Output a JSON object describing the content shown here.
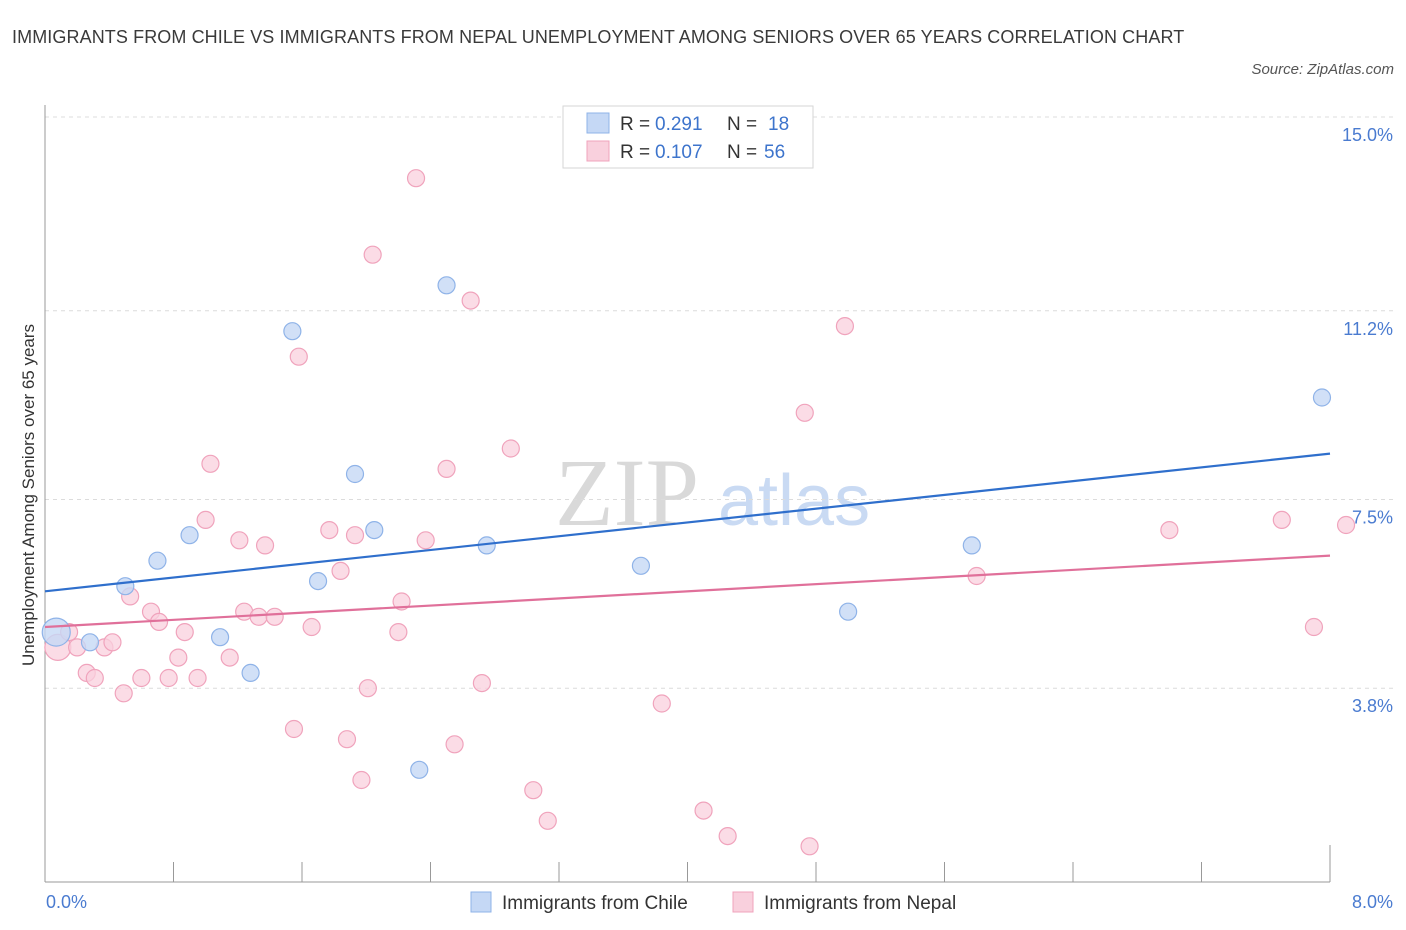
{
  "header": {
    "title": "IMMIGRANTS FROM CHILE VS IMMIGRANTS FROM NEPAL UNEMPLOYMENT AMONG SENIORS OVER 65 YEARS CORRELATION CHART",
    "source": "Source: ZipAtlas.com"
  },
  "watermark": {
    "zip": "ZIP",
    "atlas": "atlas"
  },
  "legend": {
    "chile": {
      "r_label": "R =",
      "r_value": "0.291",
      "n_label": "N =",
      "n_value": "18"
    },
    "nepal": {
      "r_label": "R =",
      "r_value": "0.107",
      "n_label": "N =",
      "n_value": "56"
    }
  },
  "bottom_legend": {
    "chile": "Immigrants from Chile",
    "nepal": "Immigrants from Nepal"
  },
  "colors": {
    "chile_fill": "#c5d8f5",
    "chile_stroke": "#8fb3e8",
    "chile_line": "#2f6fcc",
    "nepal_fill": "#f9d0dd",
    "nepal_stroke": "#f0a3bc",
    "nepal_line": "#e0709a"
  },
  "chart_data": {
    "type": "scatter",
    "title": "IMMIGRANTS FROM CHILE VS IMMIGRANTS FROM NEPAL UNEMPLOYMENT AMONG SENIORS OVER 65 YEARS CORRELATION CHART",
    "xlabel": "",
    "ylabel": "Unemployment Among Seniors over 65 years",
    "xlim": [
      0,
      8.0
    ],
    "ylim": [
      0,
      15.0
    ],
    "x_tick_labels": [
      "0.0%",
      "8.0%"
    ],
    "y_ticks": [
      3.8,
      7.5,
      11.2,
      15.0
    ],
    "y_tick_labels": [
      "3.8%",
      "7.5%",
      "11.2%",
      "15.0%"
    ],
    "series": [
      {
        "name": "Immigrants from Chile",
        "points": [
          [
            0.07,
            4.9
          ],
          [
            0.28,
            4.7
          ],
          [
            0.5,
            5.8
          ],
          [
            0.7,
            6.3
          ],
          [
            0.9,
            6.8
          ],
          [
            1.09,
            4.8
          ],
          [
            1.28,
            4.1
          ],
          [
            1.54,
            10.8
          ],
          [
            1.7,
            5.9
          ],
          [
            1.93,
            8.0
          ],
          [
            2.05,
            6.9
          ],
          [
            2.33,
            2.2
          ],
          [
            2.5,
            11.7
          ],
          [
            2.75,
            6.6
          ],
          [
            3.71,
            6.2
          ],
          [
            5.0,
            5.3
          ],
          [
            5.77,
            6.6
          ],
          [
            7.95,
            9.5
          ]
        ],
        "trend": [
          [
            0,
            5.7
          ],
          [
            8.0,
            8.4
          ]
        ]
      },
      {
        "name": "Immigrants from Nepal",
        "points": [
          [
            0.08,
            4.6
          ],
          [
            0.15,
            4.9
          ],
          [
            0.2,
            4.6
          ],
          [
            0.26,
            4.1
          ],
          [
            0.31,
            4.0
          ],
          [
            0.37,
            4.6
          ],
          [
            0.42,
            4.7
          ],
          [
            0.49,
            3.7
          ],
          [
            0.53,
            5.6
          ],
          [
            0.6,
            4.0
          ],
          [
            0.66,
            5.3
          ],
          [
            0.71,
            5.1
          ],
          [
            0.77,
            4.0
          ],
          [
            0.83,
            4.4
          ],
          [
            0.87,
            4.9
          ],
          [
            0.95,
            4.0
          ],
          [
            1.03,
            8.2
          ],
          [
            1.0,
            7.1
          ],
          [
            1.15,
            4.4
          ],
          [
            1.21,
            6.7
          ],
          [
            1.24,
            5.3
          ],
          [
            1.33,
            5.2
          ],
          [
            1.37,
            6.6
          ],
          [
            1.43,
            5.2
          ],
          [
            1.55,
            3.0
          ],
          [
            1.58,
            10.3
          ],
          [
            1.66,
            5.0
          ],
          [
            1.77,
            6.9
          ],
          [
            1.84,
            6.1
          ],
          [
            1.88,
            2.8
          ],
          [
            1.93,
            6.8
          ],
          [
            1.97,
            2.0
          ],
          [
            2.01,
            3.8
          ],
          [
            2.04,
            12.3
          ],
          [
            2.2,
            4.9
          ],
          [
            2.22,
            5.5
          ],
          [
            2.31,
            13.8
          ],
          [
            2.37,
            6.7
          ],
          [
            2.5,
            8.1
          ],
          [
            2.55,
            2.7
          ],
          [
            2.65,
            11.4
          ],
          [
            2.72,
            3.9
          ],
          [
            2.9,
            8.5
          ],
          [
            3.04,
            1.8
          ],
          [
            3.13,
            1.2
          ],
          [
            3.84,
            3.5
          ],
          [
            4.1,
            1.4
          ],
          [
            4.25,
            0.9
          ],
          [
            4.73,
            9.2
          ],
          [
            4.76,
            0.7
          ],
          [
            4.98,
            10.9
          ],
          [
            5.8,
            6.0
          ],
          [
            7.0,
            6.9
          ],
          [
            7.7,
            7.1
          ],
          [
            7.9,
            5.0
          ],
          [
            8.1,
            7.0
          ]
        ],
        "trend": [
          [
            0,
            5.0
          ],
          [
            8.0,
            6.4
          ]
        ]
      }
    ]
  }
}
